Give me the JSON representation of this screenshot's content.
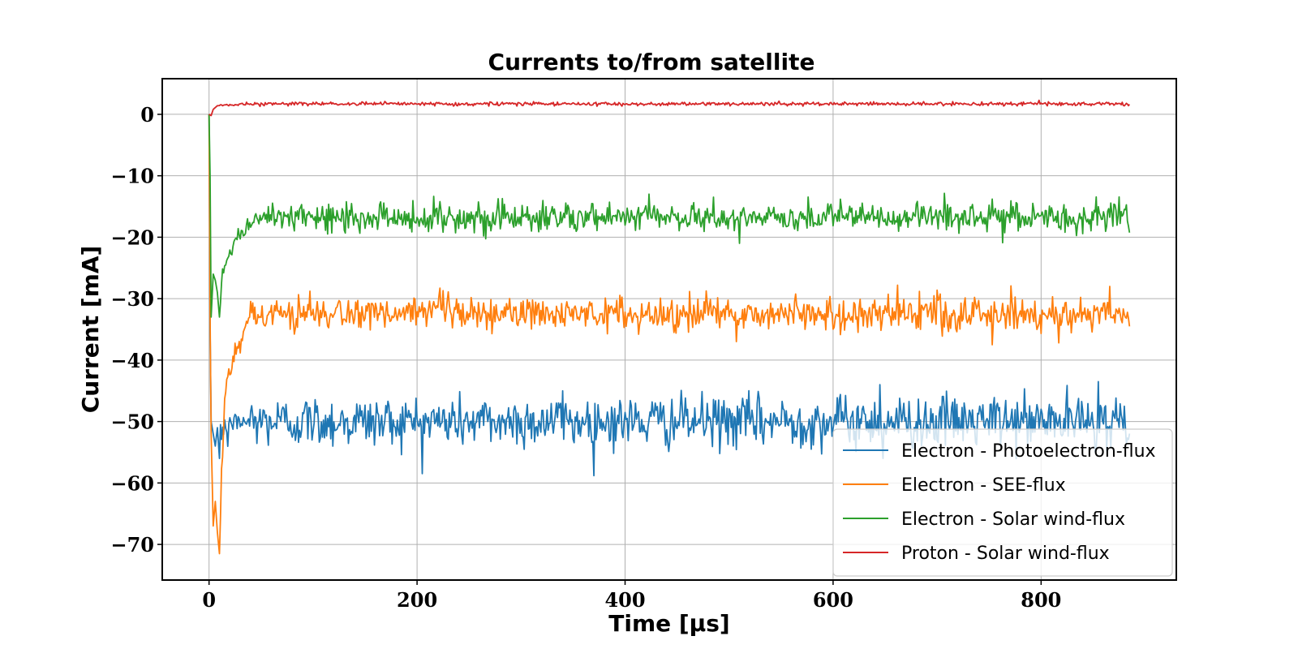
{
  "chart_data": {
    "type": "line",
    "title": "Currents to/from satellite",
    "xlabel": "Time [μs]",
    "ylabel": "Current [mA]",
    "xlim": [
      -45,
      930
    ],
    "ylim": [
      -75.8,
      5.8
    ],
    "xticks": [
      0,
      200,
      400,
      600,
      800
    ],
    "yticks": [
      0,
      -10,
      -20,
      -30,
      -40,
      -50,
      -60,
      -70
    ],
    "xtick_labels": [
      "0",
      "200",
      "400",
      "600",
      "800"
    ],
    "ytick_labels": [
      "0",
      "−10",
      "−20",
      "−30",
      "−40",
      "−50",
      "−60",
      "−70"
    ],
    "grid": true,
    "legend_position": "lower-right",
    "x_end": 885,
    "series": [
      {
        "name": "Electron - Photoelectron-flux",
        "color": "#1f77b4",
        "x": [
          0,
          1,
          2,
          4,
          6,
          8,
          10,
          12,
          15,
          18,
          22,
          26,
          30,
          40,
          885
        ],
        "y": [
          0,
          -35,
          -50,
          -52,
          -54,
          -51,
          -56,
          -52,
          -50,
          -53,
          -49,
          -51,
          -50,
          -50,
          -50
        ],
        "steady": -50,
        "noise": 2.1,
        "spikes": [
          [
            855,
            -43.5
          ],
          [
            645,
            -44
          ],
          [
            340,
            -45
          ],
          [
            648,
            -56
          ]
        ]
      },
      {
        "name": "Electron - SEE-flux",
        "color": "#ff7f0e",
        "x": [
          0,
          1,
          2,
          4,
          6,
          8,
          10,
          12,
          15,
          18,
          22,
          26,
          30,
          35,
          40,
          885
        ],
        "y": [
          0,
          -33,
          -52,
          -67,
          -63,
          -68,
          -71.5,
          -58,
          -47,
          -43,
          -40,
          -38,
          -37,
          -34,
          -33,
          -32.5
        ],
        "steady": -32.5,
        "noise": 1.4,
        "spikes": [
          [
            662,
            -27.8
          ],
          [
            866,
            -28
          ],
          [
            225,
            -28.7
          ],
          [
            753,
            -37.5
          ],
          [
            817,
            -37.2
          ]
        ]
      },
      {
        "name": "Electron - Solar wind-flux",
        "color": "#2ca02c",
        "x": [
          0,
          1,
          2,
          4,
          6,
          8,
          10,
          13,
          16,
          20,
          25,
          30,
          40,
          60,
          885
        ],
        "y": [
          0,
          -10,
          -33,
          -26,
          -27,
          -29,
          -33,
          -26,
          -25,
          -22,
          -21,
          -20,
          -17.5,
          -17,
          -16.8
        ],
        "steady": -16.8,
        "noise": 1.2,
        "spikes": [
          [
            222,
            -14.2
          ],
          [
            510,
            -21
          ]
        ]
      },
      {
        "name": "Proton - Solar wind-flux",
        "color": "#d62728",
        "x": [
          0,
          2,
          4,
          8,
          15,
          30,
          885
        ],
        "y": [
          0,
          -0.2,
          0.8,
          1.4,
          1.5,
          1.6,
          1.7
        ],
        "steady": 1.7,
        "noise": 0.15,
        "spikes": []
      }
    ]
  }
}
